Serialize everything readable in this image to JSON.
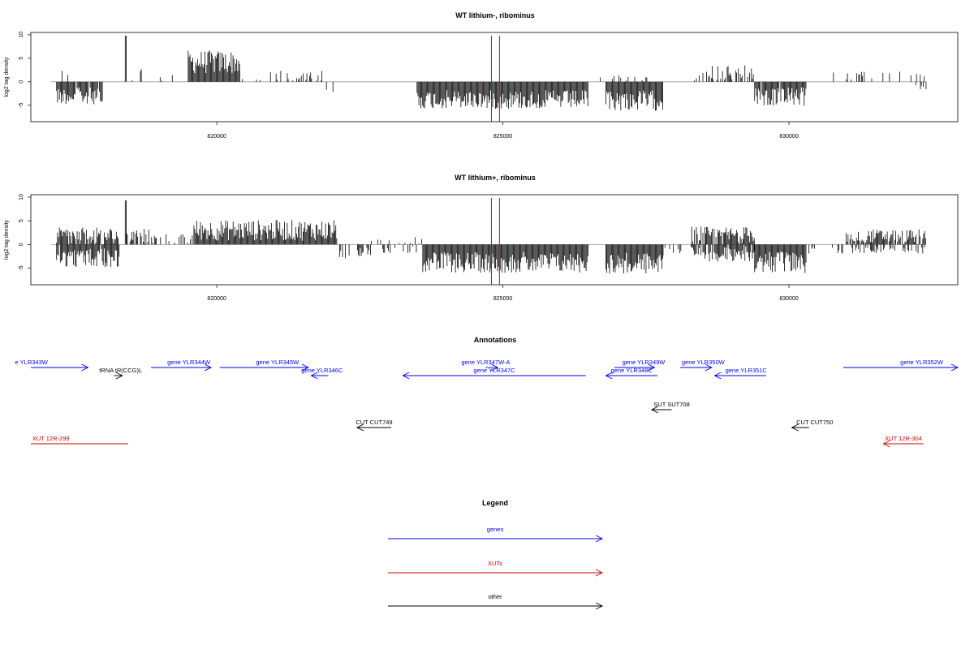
{
  "chart_data": [
    {
      "type": "bar",
      "title": "WT lithium-, ribominus",
      "ylabel": "log2 tag density",
      "xlim": [
        816750,
        832950
      ],
      "ylim": [
        -8.5,
        10.5
      ],
      "x_ticks": [
        820000,
        825000,
        830000
      ],
      "x_tick_labels": [
        "820000",
        "825000",
        "830000"
      ],
      "y_ticks": [
        -5,
        0,
        5,
        10
      ],
      "y_tick_labels": [
        "-5",
        "0",
        "5",
        "10"
      ],
      "red_markers": [
        824800,
        824940
      ],
      "regions": [
        {
          "start": 817200,
          "end": 817400,
          "strand": "plus",
          "mean": 1.2,
          "spread": 1.5,
          "density": 0.2
        },
        {
          "start": 817200,
          "end": 818000,
          "strand": "minus",
          "mean": -3.0,
          "spread": 1.8,
          "density": 0.9
        },
        {
          "start": 818400,
          "end": 818420,
          "strand": "plus",
          "mean": 9.8,
          "spread": 0,
          "density": 1
        },
        {
          "start": 818420,
          "end": 818700,
          "strand": "plus",
          "mean": 2.0,
          "spread": 2.0,
          "density": 0.4
        },
        {
          "start": 818700,
          "end": 819300,
          "strand": "plus",
          "mean": 0.8,
          "spread": 0.8,
          "density": 0.1
        },
        {
          "start": 819500,
          "end": 820400,
          "strand": "plus",
          "mean": 4.2,
          "spread": 2.5,
          "density": 1.0
        },
        {
          "start": 820400,
          "end": 821900,
          "strand": "plus",
          "mean": 1.3,
          "spread": 1.2,
          "density": 0.25
        },
        {
          "start": 821900,
          "end": 822100,
          "strand": "minus",
          "mean": -2.0,
          "spread": 1.0,
          "density": 0.15
        },
        {
          "start": 823500,
          "end": 826500,
          "strand": "minus",
          "mean": -3.8,
          "spread": 2.0,
          "density": 1.0
        },
        {
          "start": 826800,
          "end": 827800,
          "strand": "minus",
          "mean": -4.0,
          "spread": 2.2,
          "density": 1.0
        },
        {
          "start": 826700,
          "end": 827700,
          "strand": "plus",
          "mean": 0.8,
          "spread": 0.8,
          "density": 0.2
        },
        {
          "start": 828300,
          "end": 829400,
          "strand": "plus",
          "mean": 1.8,
          "spread": 1.8,
          "density": 0.55
        },
        {
          "start": 829400,
          "end": 830300,
          "strand": "minus",
          "mean": -3.2,
          "spread": 2.0,
          "density": 0.95
        },
        {
          "start": 830500,
          "end": 832400,
          "strand": "plus",
          "mean": 1.3,
          "spread": 0.9,
          "density": 0.12
        },
        {
          "start": 832200,
          "end": 832400,
          "strand": "minus",
          "mean": -1.2,
          "spread": 0.6,
          "density": 0.2
        }
      ]
    },
    {
      "type": "bar",
      "title": "WT lithium+, ribominus",
      "ylabel": "log2 tag density",
      "xlim": [
        816750,
        832950
      ],
      "ylim": [
        -8.5,
        10.5
      ],
      "x_ticks": [
        820000,
        825000,
        830000
      ],
      "x_tick_labels": [
        "820000",
        "825000",
        "830000"
      ],
      "y_ticks": [
        -5,
        0,
        5,
        10
      ],
      "y_tick_labels": [
        "-5",
        "0",
        "5",
        "10"
      ],
      "red_markers": [
        824800,
        824940
      ],
      "regions": [
        {
          "start": 817200,
          "end": 818300,
          "strand": "plus",
          "mean": 1.8,
          "spread": 1.8,
          "density": 0.8
        },
        {
          "start": 817200,
          "end": 818300,
          "strand": "minus",
          "mean": -2.8,
          "spread": 2.0,
          "density": 0.9
        },
        {
          "start": 818400,
          "end": 818420,
          "strand": "plus",
          "mean": 9.3,
          "spread": 0,
          "density": 1
        },
        {
          "start": 818420,
          "end": 819000,
          "strand": "plus",
          "mean": 1.8,
          "spread": 1.6,
          "density": 0.5
        },
        {
          "start": 819000,
          "end": 819600,
          "strand": "plus",
          "mean": 1.2,
          "spread": 1.0,
          "density": 0.3
        },
        {
          "start": 819600,
          "end": 822100,
          "strand": "plus",
          "mean": 3.0,
          "spread": 2.2,
          "density": 1.0
        },
        {
          "start": 822100,
          "end": 822700,
          "strand": "minus",
          "mean": -1.8,
          "spread": 1.2,
          "density": 0.4
        },
        {
          "start": 822700,
          "end": 823600,
          "strand": "plus",
          "mean": 0.8,
          "spread": 0.8,
          "density": 0.2
        },
        {
          "start": 822900,
          "end": 823600,
          "strand": "minus",
          "mean": -1.2,
          "spread": 0.8,
          "density": 0.3
        },
        {
          "start": 823600,
          "end": 826500,
          "strand": "minus",
          "mean": -3.8,
          "spread": 2.2,
          "density": 1.0
        },
        {
          "start": 826800,
          "end": 827800,
          "strand": "minus",
          "mean": -4.0,
          "spread": 2.3,
          "density": 1.0
        },
        {
          "start": 827800,
          "end": 828300,
          "strand": "minus",
          "mean": -1.5,
          "spread": 1.0,
          "density": 0.3
        },
        {
          "start": 828300,
          "end": 829400,
          "strand": "plus",
          "mean": 2.0,
          "spread": 1.8,
          "density": 0.8
        },
        {
          "start": 828300,
          "end": 829400,
          "strand": "minus",
          "mean": -2.0,
          "spread": 1.6,
          "density": 0.8
        },
        {
          "start": 829400,
          "end": 830300,
          "strand": "minus",
          "mean": -3.8,
          "spread": 2.3,
          "density": 1.0
        },
        {
          "start": 830300,
          "end": 831000,
          "strand": "minus",
          "mean": -1.2,
          "spread": 0.8,
          "density": 0.2
        },
        {
          "start": 831000,
          "end": 832400,
          "strand": "plus",
          "mean": 1.8,
          "spread": 1.4,
          "density": 0.8
        },
        {
          "start": 831000,
          "end": 832400,
          "strand": "minus",
          "mean": -1.2,
          "spread": 0.7,
          "density": 0.4
        }
      ]
    }
  ],
  "annotations": {
    "title": "Annotations",
    "colors": {
      "gene": "#0000ff",
      "xut": "#cc0000",
      "other": "#000000"
    },
    "features": [
      {
        "label": "e YLR343W",
        "kind": "gene",
        "start": 816750,
        "end": 817750,
        "dir": "right",
        "row": 0,
        "label_at": 816760
      },
      {
        "label": "tRNA tR(CCG)L",
        "kind": "other",
        "start": 818200,
        "end": 818350,
        "dir": "right",
        "row": 1,
        "label_at": 818320
      },
      {
        "label": "gene YLR344W",
        "kind": "gene",
        "start": 818850,
        "end": 819900,
        "dir": "right",
        "row": 0,
        "label_at": 819510
      },
      {
        "label": "gene YLR345W",
        "kind": "gene",
        "start": 820050,
        "end": 821600,
        "dir": "right",
        "row": 0,
        "label_at": 821060
      },
      {
        "label": "gene YLR346C",
        "kind": "gene",
        "start": 821650,
        "end": 821950,
        "dir": "left",
        "row": 1,
        "label_at": 821840
      },
      {
        "label": "gene YLR347W-A",
        "kind": "gene",
        "start": 824700,
        "end": 824910,
        "dir": "right",
        "row": 0,
        "label_at": 824700
      },
      {
        "label": "gene YLR347C",
        "kind": "gene",
        "start": 823250,
        "end": 826450,
        "dir": "left",
        "row": 1,
        "label_at": 824850
      },
      {
        "label": "gene YLR349W",
        "kind": "gene",
        "start": 826950,
        "end": 827650,
        "dir": "right",
        "row": 0,
        "label_at": 827460
      },
      {
        "label": "gene YLR348C",
        "kind": "gene",
        "start": 826800,
        "end": 827700,
        "dir": "left",
        "row": 1,
        "label_at": 827250
      },
      {
        "label": "gene YLR350W",
        "kind": "gene",
        "start": 828100,
        "end": 828650,
        "dir": "right",
        "row": 0,
        "label_at": 828500
      },
      {
        "label": "gene YLR351C",
        "kind": "gene",
        "start": 828700,
        "end": 829600,
        "dir": "left",
        "row": 1,
        "label_at": 829250
      },
      {
        "label": "gene YLR352W",
        "kind": "gene",
        "start": 830950,
        "end": 832950,
        "dir": "right",
        "row": 0,
        "label_at": 832320
      },
      {
        "label": "SUT SUT708",
        "kind": "other",
        "start": 827600,
        "end": 827950,
        "dir": "left",
        "row": 2,
        "label_at": 827950
      },
      {
        "label": "CUT CUT749",
        "kind": "other",
        "start": 822450,
        "end": 823050,
        "dir": "left",
        "row": 3,
        "label_at": 822750
      },
      {
        "label": "CUT CUT750",
        "kind": "other",
        "start": 830050,
        "end": 830350,
        "dir": "left",
        "row": 3,
        "label_at": 830450
      },
      {
        "label": "XUT 12R-299",
        "kind": "xut",
        "start": 816750,
        "end": 818450,
        "dir": "none",
        "row": 4,
        "label_at": 817100
      },
      {
        "label": "XUT 12R-304",
        "kind": "xut",
        "start": 831650,
        "end": 832350,
        "dir": "left",
        "row": 4,
        "label_at": 832000
      }
    ]
  },
  "legend": {
    "title": "Legend",
    "items": [
      {
        "label": "genes",
        "color": "#0000ff"
      },
      {
        "label": "XUTs",
        "color": "#cc0000"
      },
      {
        "label": "other",
        "color": "#000000"
      }
    ]
  }
}
